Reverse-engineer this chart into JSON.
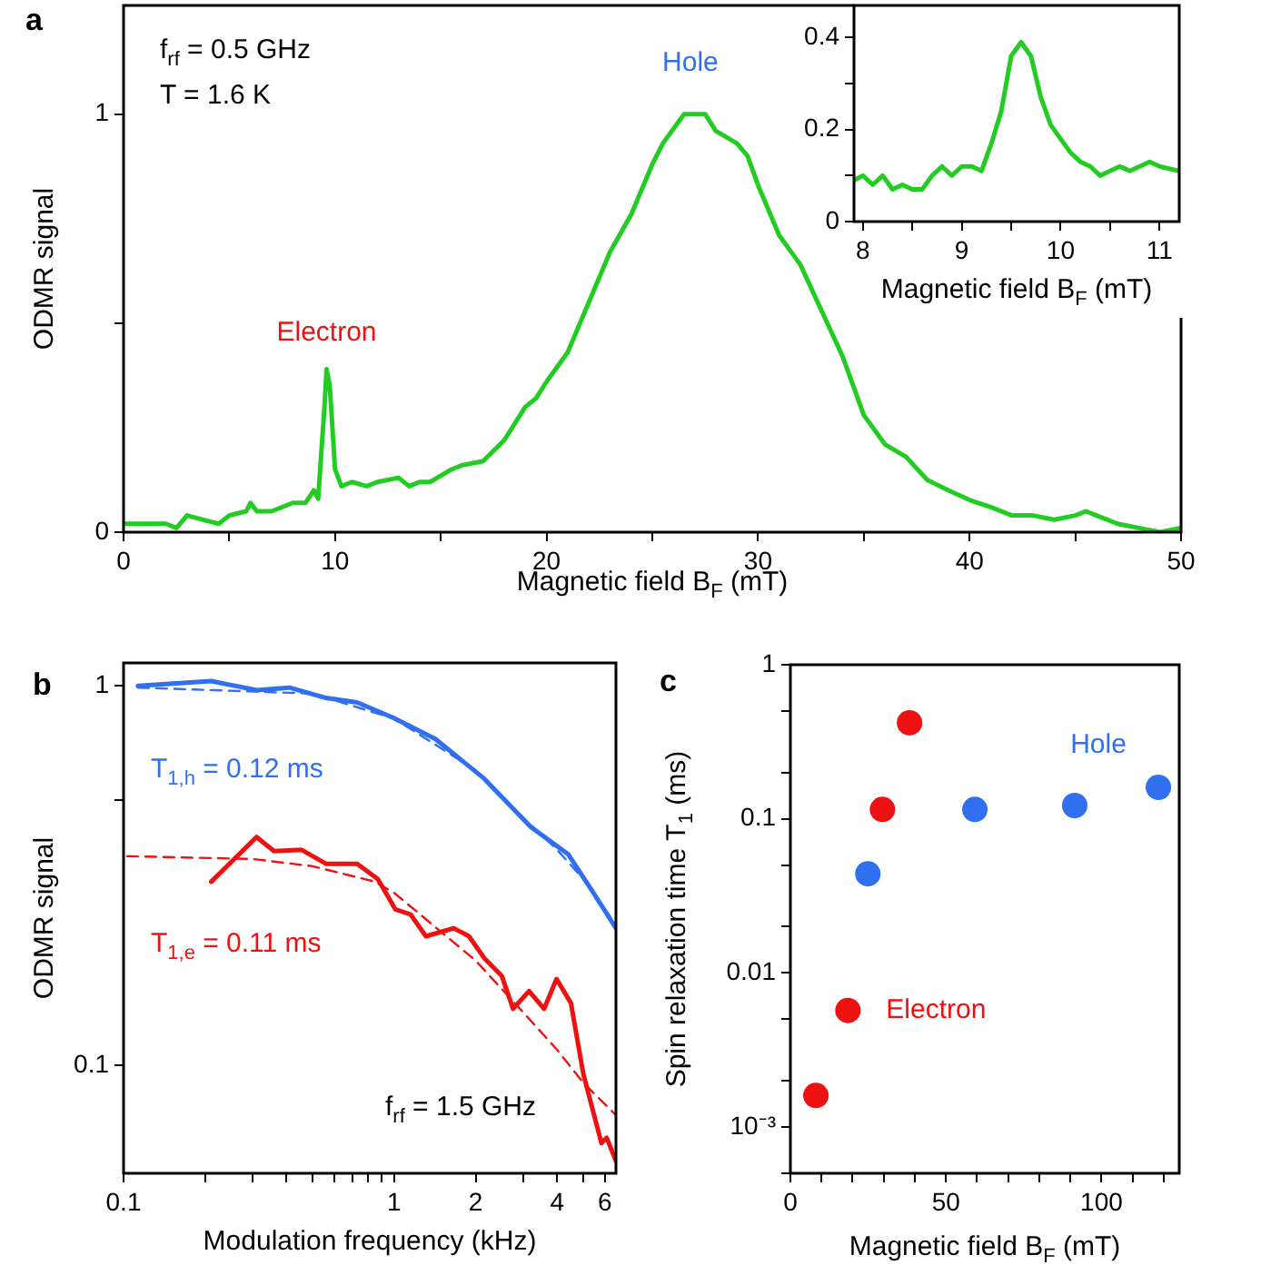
{
  "chart_data": [
    {
      "type": "line",
      "title": "a",
      "xlabel": "Magnetic field B$_{F}$ (mT)",
      "ylabel": "ODMR signal",
      "xlim": [
        0,
        50
      ],
      "ylim": [
        0,
        1.26
      ],
      "xticks": [
        0,
        {
          "value": 5,
          "label": null
        },
        10,
        {
          "value": 15,
          "label": null
        },
        20,
        {
          "value": 25,
          "label": null
        },
        30,
        {
          "value": 35,
          "label": null
        },
        40,
        {
          "value": 45,
          "label": null
        },
        50
      ],
      "yticks": [
        0,
        {
          "value": 0.5,
          "label": null
        },
        1
      ],
      "annotations": [
        "f$_{rf}$ = 0.5 GHz",
        "T = 1.6 K",
        {
          "text": "Electron",
          "x": 9.6,
          "y": 0.39
        },
        {
          "text": "Hole",
          "x": 26.8,
          "y": 1.0
        }
      ],
      "series": [
        {
          "color": "#22cc22",
          "x": [
            0,
            2,
            2.5,
            3,
            4.5,
            5,
            5.8,
            6,
            6.3,
            7,
            8,
            8.6,
            9,
            9.2,
            9.5,
            9.6,
            9.75,
            10,
            10.3,
            10.8,
            11.5,
            12,
            13,
            13.5,
            14,
            14.5,
            15.5,
            16,
            17,
            18,
            19,
            19.5,
            20,
            21,
            22,
            23,
            24,
            25,
            25.5,
            26.5,
            27.5,
            28,
            29,
            29.5,
            30,
            31,
            32,
            33,
            34,
            35,
            36,
            37,
            38,
            39,
            40,
            41,
            42,
            43,
            44,
            45,
            45.5,
            46,
            47,
            48,
            49,
            50
          ],
          "values": [
            0.02,
            0.02,
            0.01,
            0.04,
            0.02,
            0.04,
            0.05,
            0.07,
            0.05,
            0.05,
            0.07,
            0.07,
            0.1,
            0.08,
            0.3,
            0.39,
            0.35,
            0.15,
            0.11,
            0.12,
            0.11,
            0.12,
            0.13,
            0.11,
            0.12,
            0.12,
            0.15,
            0.16,
            0.17,
            0.22,
            0.3,
            0.32,
            0.36,
            0.43,
            0.55,
            0.67,
            0.76,
            0.88,
            0.93,
            1.0,
            1.0,
            0.96,
            0.93,
            0.9,
            0.83,
            0.71,
            0.64,
            0.53,
            0.42,
            0.28,
            0.21,
            0.18,
            0.125,
            0.1,
            0.077,
            0.06,
            0.04,
            0.04,
            0.03,
            0.04,
            0.05,
            0.04,
            0.02,
            0.01,
            0.0,
            0.01
          ]
        }
      ]
    },
    {
      "type": "line",
      "xlabel": "Magnetic field B$_{F}$ (mT)",
      "xlim": [
        7.91,
        11.2
      ],
      "ylim": [
        0,
        0.47
      ],
      "xticks": [
        8,
        {
          "value": 8.5,
          "label": null
        },
        9,
        {
          "value": 9.5,
          "label": null
        },
        10,
        {
          "value": 10.5,
          "label": null
        },
        11
      ],
      "yticks": [
        0,
        {
          "value": 0.1,
          "label": null
        },
        0.2,
        {
          "value": 0.3,
          "label": null
        },
        0.4
      ],
      "series": [
        {
          "color": "#22cc22",
          "x": [
            7.91,
            8.0,
            8.1,
            8.2,
            8.3,
            8.4,
            8.5,
            8.6,
            8.7,
            8.8,
            8.9,
            9.0,
            9.1,
            9.2,
            9.3,
            9.4,
            9.5,
            9.6,
            9.7,
            9.8,
            9.9,
            10.0,
            10.1,
            10.2,
            10.3,
            10.4,
            10.5,
            10.6,
            10.7,
            10.8,
            10.9,
            11.0,
            11.2
          ],
          "values": [
            0.09,
            0.1,
            0.08,
            0.1,
            0.07,
            0.08,
            0.07,
            0.07,
            0.1,
            0.12,
            0.1,
            0.12,
            0.12,
            0.11,
            0.17,
            0.24,
            0.36,
            0.39,
            0.36,
            0.27,
            0.21,
            0.18,
            0.15,
            0.13,
            0.12,
            0.1,
            0.11,
            0.12,
            0.11,
            0.12,
            0.13,
            0.12,
            0.11
          ]
        }
      ]
    },
    {
      "type": "line",
      "title": "b",
      "xlabel": "Modulation frequency (kHz)",
      "ylabel": "ODMR signal",
      "log": "xy",
      "xlim": [
        0.1,
        6.6
      ],
      "ylim": [
        0.052,
        1.15
      ],
      "xticks": [
        0.1,
        {
          "value": 0.2,
          "label": null
        },
        {
          "value": 0.3,
          "label": null
        },
        {
          "value": 0.4,
          "label": null
        },
        {
          "value": 0.5,
          "label": null
        },
        {
          "value": 0.6,
          "label": null
        },
        {
          "value": 0.7,
          "label": null
        },
        {
          "value": 0.8,
          "label": null
        },
        {
          "value": 0.9,
          "label": null
        },
        1,
        2,
        {
          "value": 3,
          "label": null
        },
        4,
        {
          "value": 5,
          "label": null
        },
        6
      ],
      "yticks": [
        0.1,
        {
          "value": 0.5,
          "label": null
        },
        1
      ],
      "annotations": [
        "T$_{1,h}$ = 0.12 ms",
        "T$_{1,e}$ = 0.11 ms",
        "f$_{rf}$ = 1.5 GHz"
      ],
      "series": [
        {
          "color": "#2f6ff0",
          "x": [
            0.113,
            0.211,
            0.31,
            0.41,
            0.56,
            0.73,
            0.99,
            1.42,
            2.15,
            3.2,
            4.4,
            5.4,
            6.6
          ],
          "values": [
            1.0,
            1.03,
            0.975,
            0.99,
            0.93,
            0.905,
            0.825,
            0.725,
            0.57,
            0.425,
            0.36,
            0.288,
            0.23
          ]
        },
        {
          "color": "#2f6ff0",
          "line_style": "dashed",
          "x": [
            0.113,
            0.5,
            1,
            2,
            3,
            4,
            5,
            6.6
          ],
          "values": [
            0.99,
            0.955,
            0.82,
            0.6,
            0.45,
            0.37,
            0.31,
            0.235
          ]
        },
        {
          "color": "#ee1111",
          "x": [
            0.211,
            0.31,
            0.36,
            0.455,
            0.56,
            0.73,
            0.87,
            1.01,
            1.15,
            1.31,
            1.66,
            1.89,
            2.15,
            2.5,
            2.75,
            3.15,
            3.58,
            3.98,
            4.5,
            5.0,
            5.83,
            6.1,
            6.6
          ],
          "values": [
            0.305,
            0.4,
            0.367,
            0.37,
            0.34,
            0.34,
            0.31,
            0.258,
            0.25,
            0.219,
            0.23,
            0.219,
            0.192,
            0.172,
            0.141,
            0.157,
            0.141,
            0.169,
            0.146,
            0.095,
            0.0625,
            0.0645,
            0.056
          ]
        },
        {
          "color": "#ee1111",
          "line_style": "dashed",
          "x": [
            0.103,
            0.3,
            0.5,
            0.85,
            1,
            2,
            3,
            4,
            5,
            6.6
          ],
          "values": [
            0.356,
            0.35,
            0.335,
            0.305,
            0.285,
            0.189,
            0.138,
            0.11,
            0.09,
            0.074
          ]
        }
      ]
    },
    {
      "type": "scatter",
      "title": "c",
      "xlabel": "Magnetic field B$_{F}$ (mT)",
      "ylabel": "Spin relaxation time T$_{1}$ (ms)",
      "log": "y",
      "marker": "circle",
      "xlim": [
        0,
        125
      ],
      "ylim": [
        0.0005,
        1
      ],
      "xticks": [
        0,
        {
          "value": 10,
          "label": null
        },
        {
          "value": 20,
          "label": null
        },
        {
          "value": 30,
          "label": null
        },
        {
          "value": 40,
          "label": null
        },
        50,
        {
          "value": 60,
          "label": null
        },
        {
          "value": 70,
          "label": null
        },
        {
          "value": 80,
          "label": null
        },
        {
          "value": 90,
          "label": null
        },
        100,
        {
          "value": 110,
          "label": null
        },
        {
          "value": 120,
          "label": null
        }
      ],
      "yticks": [
        {
          "value": 0.0005,
          "label": null
        },
        {
          "value": 0.001,
          "label": "10⁻³"
        },
        {
          "value": 0.002,
          "label": null
        },
        {
          "value": 0.005,
          "label": null
        },
        0.01,
        {
          "value": 0.02,
          "label": null
        },
        {
          "value": 0.05,
          "label": null
        },
        0.1,
        {
          "value": 0.2,
          "label": null
        },
        {
          "value": 0.5,
          "label": null
        },
        1
      ],
      "series": [
        {
          "name": "Electron",
          "color": "#ee1111",
          "x": [
            8.2,
            18.5,
            29.6,
            38.3
          ],
          "values": [
            0.0016,
            0.0057,
            0.115,
            0.42
          ]
        },
        {
          "name": "Hole",
          "color": "#2f6ff0",
          "x": [
            24.9,
            59.3,
            91.4,
            118.3
          ],
          "values": [
            0.044,
            0.115,
            0.122,
            0.16
          ]
        }
      ]
    }
  ]
}
